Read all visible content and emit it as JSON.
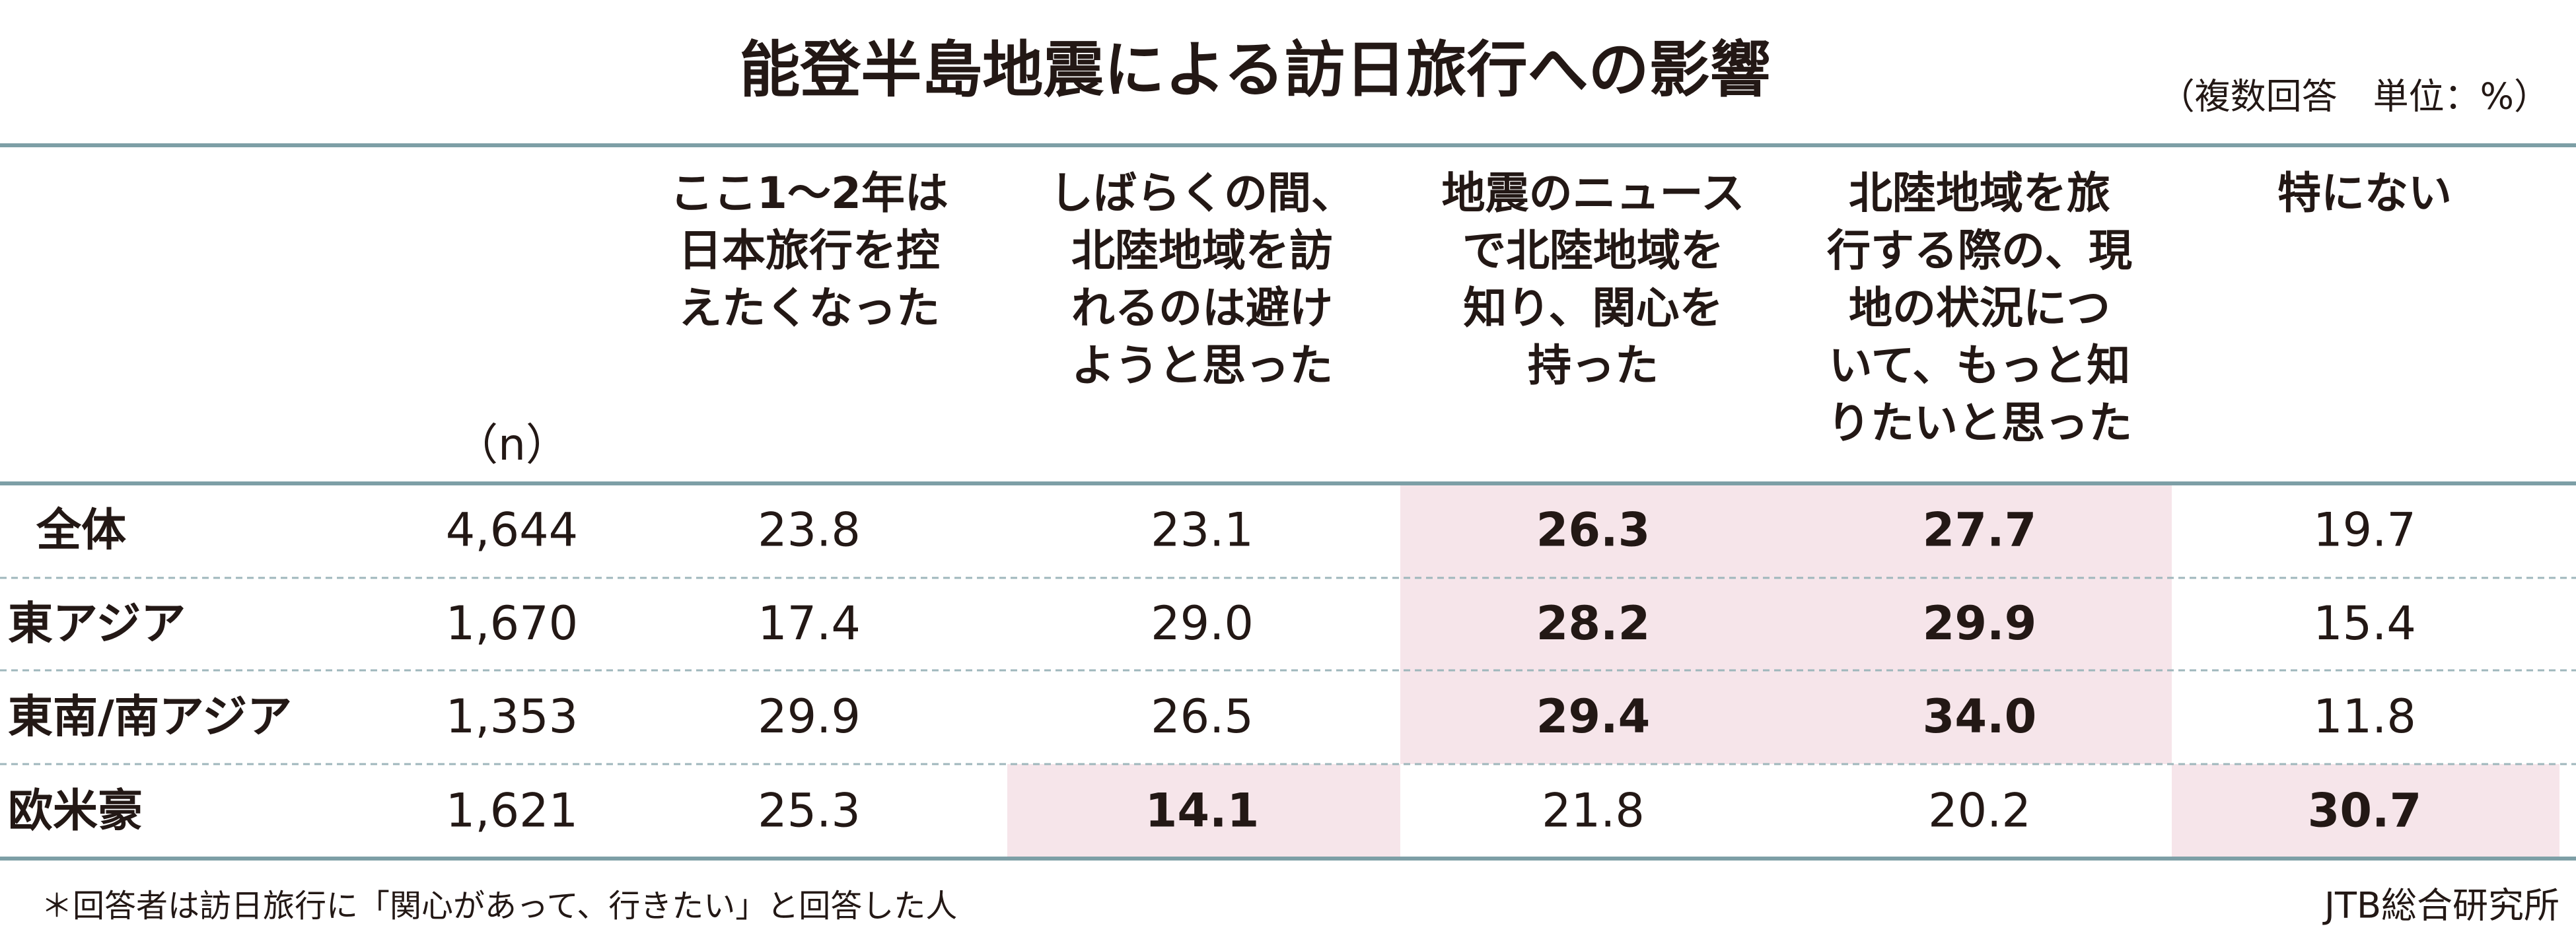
{
  "title": "能登半島地震による訪日旅行への影響",
  "note": "（複数回答　単位：%）",
  "table": {
    "n_header": "（n）",
    "headers": [
      [
        "ここ1～2年は",
        "日本旅行を控",
        "えたくなった"
      ],
      [
        "しばらくの間、",
        "北陸地域を訪",
        "れるのは避け",
        "ようと思った"
      ],
      [
        "地震のニュース",
        "で北陸地域を",
        "知り、関心を",
        "持った"
      ],
      [
        "北陸地域を旅",
        "行する際の、現",
        "地の状況につ",
        "いて、もっと知",
        "りたいと思った"
      ],
      [
        "特にない"
      ]
    ],
    "rows": [
      [
        "全体",
        "4,644",
        "23.8",
        "23.1",
        "26.3",
        "27.7",
        "19.7"
      ],
      [
        "東アジア",
        "1,670",
        "17.4",
        "29.0",
        "28.2",
        "29.9",
        "15.4"
      ],
      [
        "東南/南アジア",
        "1,353",
        "29.9",
        "26.5",
        "29.4",
        "34.0",
        "11.8"
      ],
      [
        "欧米豪",
        "1,621",
        "25.3",
        "14.1",
        "21.8",
        "20.2",
        "30.7"
      ]
    ]
  },
  "highlighted_cells": [
    [
      0,
      4
    ],
    [
      0,
      5
    ],
    [
      1,
      4
    ],
    [
      1,
      5
    ],
    [
      2,
      4
    ],
    [
      2,
      5
    ],
    [
      3,
      3
    ],
    [
      3,
      6
    ]
  ],
  "highlight_color": "#f6e5ea",
  "footnote": "＊回答者は訪日旅行に「関心があって、行きたい」と回答した人",
  "source": "JTB総合研究所"
}
